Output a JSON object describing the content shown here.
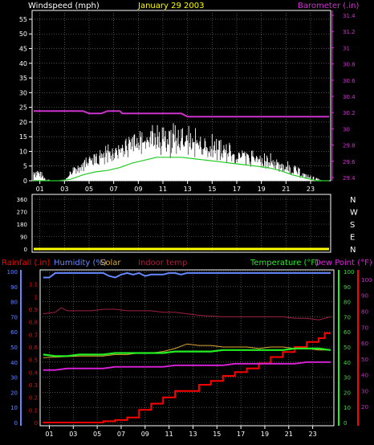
{
  "colors": {
    "wind": "#ffffff",
    "gust_avg": "#22cc22",
    "barometer": "#cc33cc",
    "direction": "#ffff00",
    "rainfall": "#ff0000",
    "humidity": "#6688ff",
    "solar": "#ddaa33",
    "indoor_temp": "#a02040",
    "temperature": "#22ee22",
    "dew_point": "#dd22dd",
    "grid": "#808080",
    "axis": "#ffffff"
  },
  "x_ticks": [
    "01",
    "03",
    "05",
    "07",
    "09",
    "11",
    "13",
    "15",
    "17",
    "19",
    "21",
    "23"
  ],
  "chart_data": [
    {
      "type": "line",
      "title": "January 29 2003",
      "ylabel": "Windspeed (mph)",
      "y2label": "Barometer (.in)",
      "x_range": [
        0,
        24
      ],
      "ylim": [
        0,
        58
      ],
      "y_ticks": [
        "0",
        "5",
        "10",
        "15",
        "20",
        "25",
        "30",
        "35",
        "40",
        "45",
        "50",
        "55"
      ],
      "y2lim": [
        29.36,
        31.46
      ],
      "y2_ticks": [
        "29.4",
        "29.6",
        "29.8",
        "30",
        "30.2",
        "30.4",
        "30.6",
        "30.8",
        "31",
        "31.2",
        "31.4"
      ],
      "grid": true,
      "series": [
        {
          "key": "wind_speed",
          "x": [
            0,
            0.5,
            1,
            1.5,
            2,
            2.5,
            3,
            3.5,
            4,
            4.5,
            5,
            5.5,
            6,
            6.5,
            7,
            7.5,
            8,
            8.5,
            9,
            9.5,
            10,
            10.5,
            11,
            11.5,
            12,
            12.5,
            13,
            13.5,
            14,
            14.5,
            15,
            15.5,
            16,
            16.5,
            17,
            17.5,
            18,
            18.5,
            19,
            19.5,
            20,
            20.5,
            21,
            21.5,
            22,
            22.5,
            23,
            23.5,
            24
          ],
          "values": [
            2,
            1,
            0,
            0,
            0,
            0,
            2,
            4,
            5,
            6,
            7,
            8,
            9,
            10,
            11,
            12,
            13,
            14,
            15,
            16,
            15,
            14,
            15,
            15,
            14,
            13,
            13,
            12,
            12,
            11,
            11,
            10,
            9,
            9,
            8,
            8,
            8,
            7,
            7,
            6,
            5,
            4,
            3,
            2,
            1,
            0,
            0,
            0,
            0
          ],
          "peaks": [
            5,
            4,
            1,
            0,
            0,
            0,
            4,
            7,
            9,
            10,
            11,
            12,
            13,
            14,
            16,
            17,
            18,
            19,
            20,
            23,
            21,
            20,
            22,
            21,
            20,
            19,
            19,
            18,
            17,
            16,
            16,
            15,
            13,
            13,
            12,
            11,
            11,
            10,
            10,
            9,
            8,
            7,
            6,
            5,
            3,
            2,
            1,
            0,
            0
          ]
        },
        {
          "key": "wind_avg",
          "x": [
            0,
            1,
            2,
            3,
            4,
            5,
            6,
            7,
            8,
            9,
            10,
            11,
            12,
            13,
            14,
            15,
            16,
            17,
            18,
            19,
            20,
            21,
            22,
            23,
            24
          ],
          "values": [
            0,
            0,
            0,
            0.5,
            2,
            3,
            3.5,
            4.5,
            6,
            7,
            8,
            8,
            8,
            7.5,
            7,
            6.5,
            6,
            5.5,
            5,
            4.5,
            3.5,
            2,
            1,
            0,
            0
          ]
        }
      ],
      "barometer": {
        "x": [
          0,
          4,
          4.5,
          5.5,
          6,
          7,
          7.2,
          12,
          12.5,
          24
        ],
        "values": [
          30.22,
          30.22,
          30.19,
          30.19,
          30.22,
          30.22,
          30.19,
          30.19,
          30.15,
          30.15
        ]
      }
    },
    {
      "type": "line",
      "title": "",
      "y2lim": [
        0,
        360
      ],
      "y2_ticks": [
        "0",
        "90",
        "180",
        "270",
        "360"
      ],
      "compass": [
        "N",
        "E",
        "S",
        "W",
        "N"
      ],
      "series": [
        {
          "key": "wind_direction",
          "x": [
            0,
            24
          ],
          "values": [
            0,
            0
          ]
        }
      ]
    },
    {
      "type": "line",
      "title": "",
      "labels": {
        "rainfall": "Rainfall (.in)",
        "humidity": "Humidity (%)",
        "solar": "Solar",
        "indoor_temp": "Indoor temp",
        "temperature": "Temperature (°F)",
        "dew_point": "Dew Point (°F)"
      },
      "humidity_axis": {
        "lim": [
          0,
          100
        ],
        "ticks": [
          "0",
          "10",
          "20",
          "30",
          "40",
          "50",
          "60",
          "70",
          "80",
          "90",
          "100"
        ]
      },
      "rainfall_axis": {
        "lim": [
          0,
          1.2
        ],
        "ticks": [
          "0",
          "0.1",
          "0.2",
          "0.3",
          "0.4",
          "0.5",
          "0.6",
          "0.7",
          "0.8",
          "0.9",
          "1",
          "1.1"
        ]
      },
      "temperature_axis": {
        "lim": [
          0,
          100
        ],
        "ticks": [
          "0",
          "10",
          "20",
          "30",
          "40",
          "50",
          "60",
          "70",
          "80",
          "90",
          "100"
        ]
      },
      "dew_point_axis": {
        "lim": [
          10,
          105
        ],
        "ticks": [
          "20",
          "30",
          "40",
          "50",
          "60",
          "70",
          "80",
          "90",
          "100"
        ]
      },
      "grid": true,
      "series": [
        {
          "key": "humidity",
          "axis": "humidity",
          "x": [
            0,
            0.5,
            1,
            2,
            4,
            5,
            5.5,
            6,
            6.5,
            7,
            7.5,
            8,
            8.5,
            9,
            10,
            10.5,
            11,
            11.5,
            12,
            24
          ],
          "values": [
            96,
            96,
            99,
            99,
            99,
            99,
            97,
            96,
            98,
            99,
            98,
            99,
            97,
            98,
            98,
            99,
            99,
            98,
            99,
            99
          ]
        },
        {
          "key": "indoor_temp",
          "axis": "temperature",
          "x": [
            0,
            1,
            1.5,
            2,
            4,
            5,
            6,
            7,
            8,
            9,
            10,
            11,
            12,
            13,
            15,
            17,
            19,
            20,
            21,
            22,
            23,
            24
          ],
          "values": [
            72,
            73,
            76,
            74,
            74,
            75,
            75,
            74,
            74,
            74,
            73,
            73,
            72,
            71,
            70,
            70,
            70,
            70,
            69,
            69,
            68,
            70
          ]
        },
        {
          "key": "rainfall",
          "axis": "rainfall",
          "x": [
            0,
            5,
            5,
            6,
            6,
            7,
            7,
            8,
            8,
            9,
            9,
            10,
            10,
            11,
            11,
            13,
            13,
            14,
            14,
            15,
            15,
            16,
            16,
            17,
            17,
            18,
            18,
            19,
            19,
            20,
            20,
            21,
            21,
            22,
            22,
            23,
            23,
            23.5,
            23.5,
            24
          ],
          "values": [
            0,
            0,
            0.01,
            0.01,
            0.02,
            0.02,
            0.04,
            0.04,
            0.1,
            0.1,
            0.15,
            0.15,
            0.2,
            0.2,
            0.25,
            0.25,
            0.3,
            0.3,
            0.33,
            0.33,
            0.37,
            0.37,
            0.4,
            0.4,
            0.43,
            0.43,
            0.47,
            0.47,
            0.52,
            0.52,
            0.56,
            0.56,
            0.6,
            0.6,
            0.64,
            0.64,
            0.67,
            0.67,
            0.71,
            0.71
          ]
        },
        {
          "key": "solar",
          "axis": "temperature",
          "x": [
            0,
            3,
            5,
            6,
            7,
            8,
            9,
            10,
            11,
            12,
            13,
            14,
            15,
            16,
            17,
            18,
            19,
            20,
            21,
            22,
            23,
            24
          ],
          "values": [
            43,
            44,
            44,
            45,
            45,
            46,
            46,
            47,
            49,
            52,
            51,
            51,
            50,
            50,
            50,
            49,
            50,
            50,
            49,
            49,
            48,
            48
          ]
        },
        {
          "key": "temperature",
          "axis": "temperature",
          "x": [
            0,
            1,
            2,
            3,
            4,
            5,
            6,
            7,
            8,
            9,
            10,
            11,
            12,
            13,
            14,
            15,
            16,
            17,
            18,
            19,
            20,
            21,
            22,
            23,
            24
          ],
          "values": [
            45,
            44,
            44,
            45,
            45,
            45,
            46,
            46,
            46,
            46,
            46,
            47,
            47,
            47,
            47,
            48,
            48,
            48,
            48,
            48,
            48,
            49,
            49,
            49,
            48
          ]
        },
        {
          "key": "dew_point",
          "axis": "dew_point",
          "x": [
            0,
            1,
            2,
            3,
            4,
            5,
            6,
            7,
            8,
            9,
            10,
            11,
            12,
            13,
            14,
            15,
            16,
            17,
            18,
            19,
            20,
            21,
            22,
            23,
            24
          ],
          "values": [
            43,
            43,
            44,
            44,
            44,
            44,
            45,
            45,
            45,
            45,
            45,
            46,
            46,
            46,
            46,
            46,
            47,
            47,
            47,
            47,
            47,
            47,
            48,
            48,
            48
          ]
        }
      ]
    }
  ]
}
